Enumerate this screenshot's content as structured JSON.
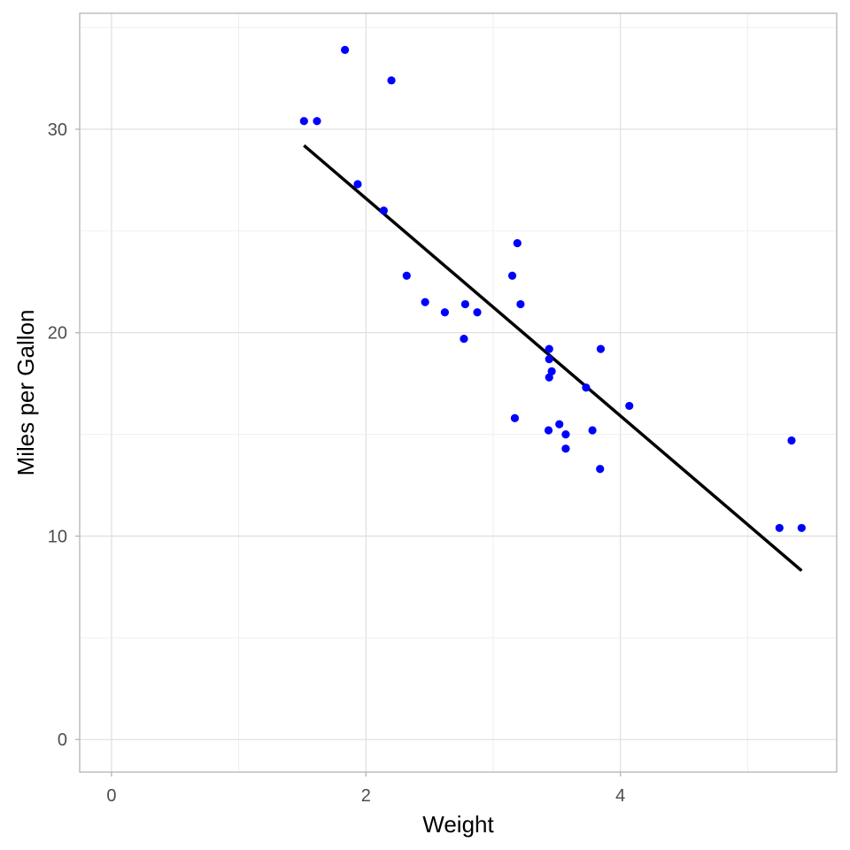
{
  "chart_data": {
    "type": "scatter",
    "title": "",
    "xlabel": "Weight",
    "ylabel": "Miles per Gallon",
    "xlim": [
      -0.25,
      5.7
    ],
    "ylim": [
      -1.6,
      35.7
    ],
    "x_ticks": [
      0,
      2,
      4
    ],
    "y_ticks": [
      0,
      10,
      20,
      30
    ],
    "x_tick_labels": [
      "0",
      "2",
      "4"
    ],
    "y_tick_labels": [
      "0",
      "10",
      "20",
      "30"
    ],
    "grid": true,
    "legend": "none",
    "point_color": "#0000ff",
    "line_color": "#000000",
    "series": [
      {
        "type": "scatter",
        "x": [
          2.62,
          2.875,
          2.32,
          3.215,
          3.44,
          3.46,
          3.57,
          3.19,
          3.15,
          3.44,
          3.44,
          4.07,
          3.73,
          3.78,
          5.25,
          5.424,
          5.345,
          2.2,
          1.615,
          1.835,
          2.465,
          3.52,
          3.435,
          3.84,
          3.845,
          1.935,
          2.14,
          1.513,
          3.17,
          2.77,
          3.57,
          2.78
        ],
        "y": [
          21.0,
          21.0,
          22.8,
          21.4,
          18.7,
          18.1,
          14.3,
          24.4,
          22.8,
          19.2,
          17.8,
          16.4,
          17.3,
          15.2,
          10.4,
          10.4,
          14.7,
          32.4,
          30.4,
          33.9,
          21.5,
          15.5,
          15.2,
          13.3,
          19.2,
          27.3,
          26.0,
          30.4,
          15.8,
          19.7,
          15.0,
          21.4
        ]
      },
      {
        "type": "line",
        "x": [
          1.513,
          5.424
        ],
        "y": [
          29.2,
          8.3
        ]
      }
    ]
  }
}
